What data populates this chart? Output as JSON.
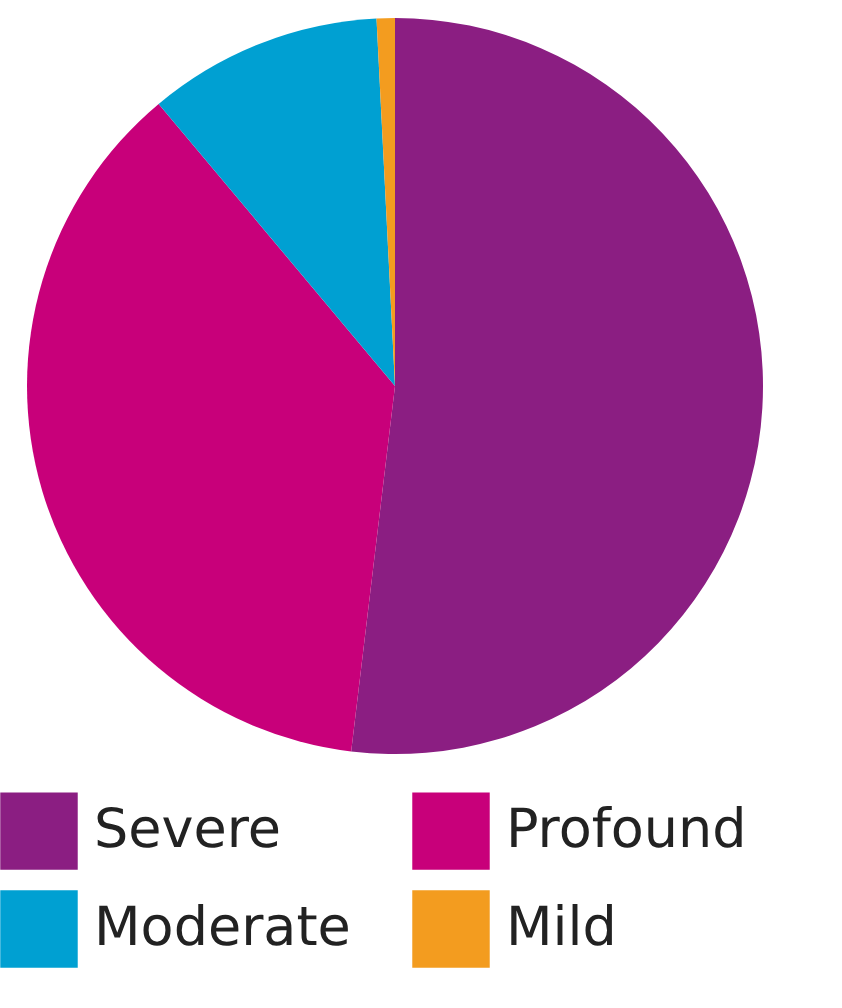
{
  "chart_data": {
    "type": "pie",
    "categories": [
      "Severe",
      "Profound",
      "Moderate",
      "Mild"
    ],
    "values": [
      51.9,
      37.0,
      10.3,
      0.8
    ],
    "colors": [
      "#8b1e82",
      "#c8007a",
      "#00a0d2",
      "#f39c1f"
    ],
    "legend": "bottom"
  }
}
